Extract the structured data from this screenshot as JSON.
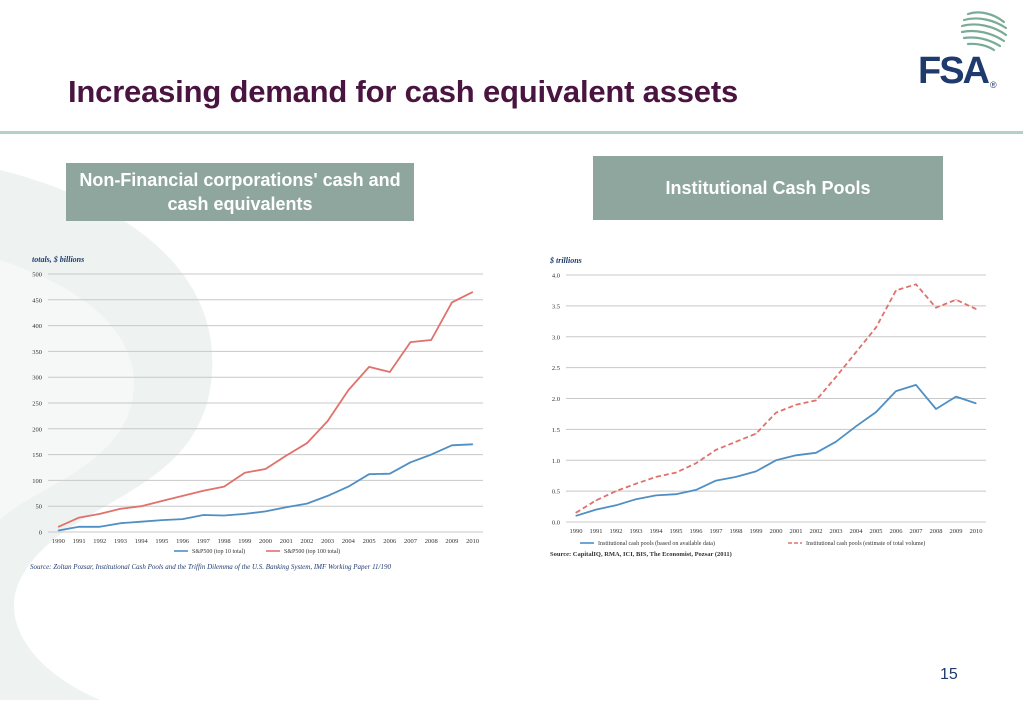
{
  "slide": {
    "title": "Increasing demand for cash equivalent assets",
    "page_number": "15",
    "source": "Source: Zoltan Pozsar, Institutional Cash Pools and the Triffin Dilemma of the U.S. Banking System, IMF Working Paper 11/190"
  },
  "logo": {
    "text": "FSA",
    "registered": "®"
  },
  "panels": {
    "left_header": "Non-Financial corporations' cash and cash equivalents",
    "right_header": "Institutional Cash Pools"
  },
  "colors": {
    "title": "#4a1440",
    "accent_green": "#8ea69d",
    "series_blue": "#4f8fc4",
    "series_red": "#e0716b",
    "logo_blue": "#1f3a6d"
  },
  "chart_data": [
    {
      "type": "line",
      "ylabel": "totals, $ billions",
      "ylim": [
        0,
        500
      ],
      "yticks": [
        0,
        50,
        100,
        150,
        200,
        250,
        300,
        350,
        400,
        450,
        500
      ],
      "grid": true,
      "legend": "bottom",
      "x": [
        "1990",
        "1991",
        "1992",
        "1993",
        "1994",
        "1995",
        "1996",
        "1997",
        "1998",
        "1999",
        "2000",
        "2001",
        "2002",
        "2003",
        "2004",
        "2005",
        "2006",
        "2007",
        "2008",
        "2009",
        "2010"
      ],
      "series": [
        {
          "name": "S&P500 (top 10 total)",
          "color": "#4f8fc4",
          "dash": false,
          "values": [
            3,
            10,
            10,
            17,
            20,
            23,
            25,
            33,
            32,
            35,
            40,
            48,
            55,
            70,
            88,
            112,
            113,
            135,
            150,
            168,
            170
          ]
        },
        {
          "name": "S&P500 (top 100 total)",
          "color": "#e0716b",
          "dash": false,
          "values": [
            10,
            28,
            35,
            45,
            50,
            60,
            70,
            80,
            88,
            115,
            122,
            148,
            172,
            215,
            275,
            320,
            310,
            368,
            372,
            445,
            465
          ]
        }
      ]
    },
    {
      "type": "line",
      "ylabel": "$ trillions",
      "ylim": [
        0,
        4.0
      ],
      "yticks": [
        "0.0",
        "0.5",
        "1.0",
        "1.5",
        "2.0",
        "2.5",
        "3.0",
        "3.5",
        "4.0"
      ],
      "grid": true,
      "legend": "bottom",
      "source_note": "Source: CapitalIQ, RMA, ICI, BIS, The Economist, Pozsar (2011)",
      "x": [
        "1990",
        "1991",
        "1992",
        "1993",
        "1994",
        "1995",
        "1996",
        "1997",
        "1998",
        "1999",
        "2000",
        "2001",
        "2002",
        "2003",
        "2004",
        "2005",
        "2006",
        "2007",
        "2008",
        "2009",
        "2010"
      ],
      "series": [
        {
          "name": "Institutional cash pools (based on available data)",
          "color": "#4f8fc4",
          "dash": false,
          "values": [
            0.1,
            0.2,
            0.27,
            0.37,
            0.43,
            0.45,
            0.52,
            0.67,
            0.73,
            0.82,
            1.0,
            1.08,
            1.12,
            1.3,
            1.55,
            1.78,
            2.12,
            2.22,
            1.83,
            2.03,
            1.92
          ]
        },
        {
          "name": "Institutional cash pools (estimate of total volume)",
          "color": "#e0716b",
          "dash": true,
          "values": [
            0.15,
            0.35,
            0.5,
            0.62,
            0.73,
            0.8,
            0.95,
            1.17,
            1.3,
            1.43,
            1.77,
            1.9,
            1.97,
            2.35,
            2.75,
            3.15,
            3.75,
            3.85,
            3.47,
            3.6,
            3.45
          ]
        }
      ]
    }
  ]
}
